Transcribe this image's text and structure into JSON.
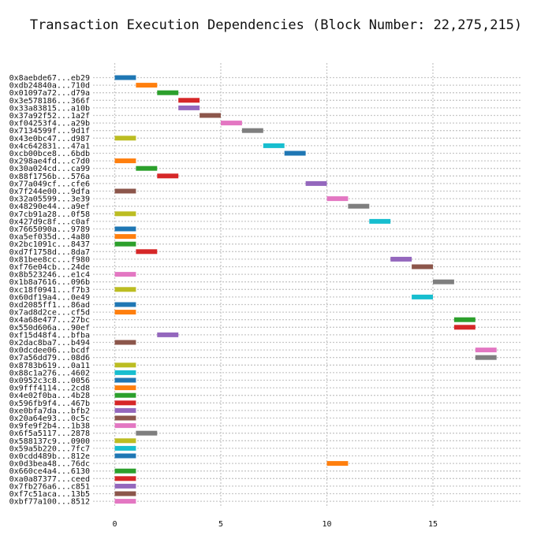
{
  "chart_data": {
    "type": "bar",
    "orientation": "horizontal-gantt",
    "title": "Transaction Execution Dependencies (Block Number: 22,275,215)",
    "xlabel": "",
    "ylabel": "",
    "xlim": [
      -0.5,
      19
    ],
    "xticks": [
      0,
      5,
      10,
      15
    ],
    "grid": true,
    "legend": "none",
    "palette": [
      "#1f77b4",
      "#ff7f0e",
      "#2ca02c",
      "#d62728",
      "#9467bd",
      "#8c564b",
      "#e377c2",
      "#7f7f7f",
      "#bcbd22",
      "#17becf"
    ],
    "transactions": [
      {
        "label": "0x8aebde67...eb29",
        "start": 0,
        "end": 1,
        "color": 0
      },
      {
        "label": "0xdb24840a...710d",
        "start": 1,
        "end": 2,
        "color": 1
      },
      {
        "label": "0x01097a72...d79a",
        "start": 2,
        "end": 3,
        "color": 2
      },
      {
        "label": "0x3e578186...366f",
        "start": 3,
        "end": 4,
        "color": 3
      },
      {
        "label": "0x33a83815...a10b",
        "start": 3,
        "end": 4,
        "color": 4
      },
      {
        "label": "0x37a92f52...1a2f",
        "start": 4,
        "end": 5,
        "color": 5
      },
      {
        "label": "0xf04253f4...a29b",
        "start": 5,
        "end": 6,
        "color": 6
      },
      {
        "label": "0x7134599f...9d1f",
        "start": 6,
        "end": 7,
        "color": 7
      },
      {
        "label": "0x43e0bc47...d987",
        "start": 0,
        "end": 1,
        "color": 8
      },
      {
        "label": "0x4c642831...47a1",
        "start": 7,
        "end": 8,
        "color": 9
      },
      {
        "label": "0xcb00bce8...6bdb",
        "start": 8,
        "end": 9,
        "color": 0
      },
      {
        "label": "0x298ae4fd...c7d0",
        "start": 0,
        "end": 1,
        "color": 1
      },
      {
        "label": "0x30a024cd...ca99",
        "start": 1,
        "end": 2,
        "color": 2
      },
      {
        "label": "0x88f1756b...576a",
        "start": 2,
        "end": 3,
        "color": 3
      },
      {
        "label": "0x77a049cf...cfe6",
        "start": 9,
        "end": 10,
        "color": 4
      },
      {
        "label": "0x7f244e00...9dfa",
        "start": 0,
        "end": 1,
        "color": 5
      },
      {
        "label": "0x32a05599...3e39",
        "start": 10,
        "end": 11,
        "color": 6
      },
      {
        "label": "0x48290e44...a9ef",
        "start": 11,
        "end": 12,
        "color": 7
      },
      {
        "label": "0x7cb91a28...0f58",
        "start": 0,
        "end": 1,
        "color": 8
      },
      {
        "label": "0x427d9c8f...c0af",
        "start": 12,
        "end": 13,
        "color": 9
      },
      {
        "label": "0x7665090a...9789",
        "start": 0,
        "end": 1,
        "color": 0
      },
      {
        "label": "0xa5ef035d...4a80",
        "start": 0,
        "end": 1,
        "color": 1
      },
      {
        "label": "0x2bc1091c...8437",
        "start": 0,
        "end": 1,
        "color": 2
      },
      {
        "label": "0xd7f1758d...8da7",
        "start": 1,
        "end": 2,
        "color": 3
      },
      {
        "label": "0x81bee8cc...f980",
        "start": 13,
        "end": 14,
        "color": 4
      },
      {
        "label": "0xf76e04cb...24de",
        "start": 14,
        "end": 15,
        "color": 5
      },
      {
        "label": "0x8b523246...e1c4",
        "start": 0,
        "end": 1,
        "color": 6
      },
      {
        "label": "0x1b8a7616...096b",
        "start": 15,
        "end": 16,
        "color": 7
      },
      {
        "label": "0xc18f0941...f7b3",
        "start": 0,
        "end": 1,
        "color": 8
      },
      {
        "label": "0x60df19a4...0e49",
        "start": 14,
        "end": 15,
        "color": 9
      },
      {
        "label": "0xd2085ff1...86ad",
        "start": 0,
        "end": 1,
        "color": 0
      },
      {
        "label": "0x7ad8d2ce...cf5d",
        "start": 0,
        "end": 1,
        "color": 1
      },
      {
        "label": "0x4a68e477...27bc",
        "start": 16,
        "end": 17,
        "color": 2
      },
      {
        "label": "0x550d606a...90ef",
        "start": 16,
        "end": 17,
        "color": 3
      },
      {
        "label": "0xf15d48f4...bfba",
        "start": 2,
        "end": 3,
        "color": 4
      },
      {
        "label": "0x2dac8ba7...b494",
        "start": 0,
        "end": 1,
        "color": 5
      },
      {
        "label": "0x0dcdee06...bcdf",
        "start": 17,
        "end": 18,
        "color": 6
      },
      {
        "label": "0x7a56dd79...08d6",
        "start": 17,
        "end": 18,
        "color": 7
      },
      {
        "label": "0x8783b619...0a11",
        "start": 0,
        "end": 1,
        "color": 8
      },
      {
        "label": "0x88c1a276...4602",
        "start": 0,
        "end": 1,
        "color": 9
      },
      {
        "label": "0x0952c3c8...0056",
        "start": 0,
        "end": 1,
        "color": 0
      },
      {
        "label": "0x9fff4114...2cd8",
        "start": 0,
        "end": 1,
        "color": 1
      },
      {
        "label": "0x4e02f0ba...4b28",
        "start": 0,
        "end": 1,
        "color": 2
      },
      {
        "label": "0x596fb9f4...467b",
        "start": 0,
        "end": 1,
        "color": 3
      },
      {
        "label": "0xe0bfa7da...bfb2",
        "start": 0,
        "end": 1,
        "color": 4
      },
      {
        "label": "0x20a64e93...0c5c",
        "start": 0,
        "end": 1,
        "color": 5
      },
      {
        "label": "0x9fe9f2b4...1b38",
        "start": 0,
        "end": 1,
        "color": 6
      },
      {
        "label": "0x6f5a5117...2878",
        "start": 1,
        "end": 2,
        "color": 7
      },
      {
        "label": "0x588137c9...0900",
        "start": 0,
        "end": 1,
        "color": 8
      },
      {
        "label": "0x59a5b220...7fc7",
        "start": 0,
        "end": 1,
        "color": 9
      },
      {
        "label": "0x0cdd489b...812e",
        "start": 0,
        "end": 1,
        "color": 0
      },
      {
        "label": "0x0d3bea48...76dc",
        "start": 10,
        "end": 11,
        "color": 1
      },
      {
        "label": "0x660ce4a4...6130",
        "start": 0,
        "end": 1,
        "color": 2
      },
      {
        "label": "0xa0a87377...ceed",
        "start": 0,
        "end": 1,
        "color": 3
      },
      {
        "label": "0x7fb276a6...c851",
        "start": 0,
        "end": 1,
        "color": 4
      },
      {
        "label": "0xf7c51aca...13b5",
        "start": 0,
        "end": 1,
        "color": 5
      },
      {
        "label": "0xbf77a100...8512",
        "start": 0,
        "end": 1,
        "color": 6
      }
    ]
  }
}
